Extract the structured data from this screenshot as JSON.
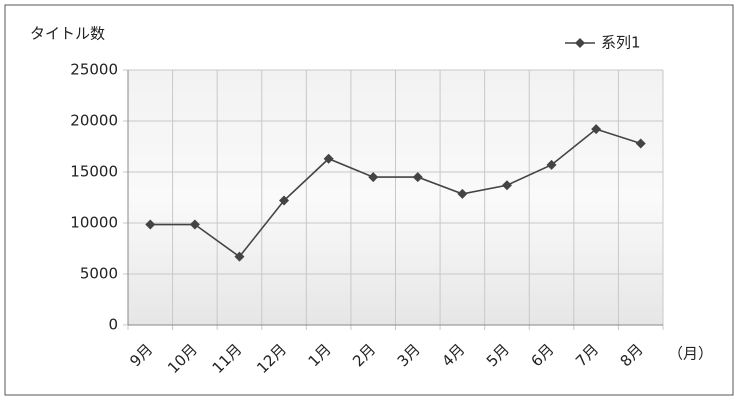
{
  "chart_data": {
    "type": "line",
    "y_label": "タイトル数",
    "x_label": "（月）",
    "categories": [
      "9月",
      "10月",
      "11月",
      "12月",
      "1月",
      "2月",
      "3月",
      "4月",
      "5月",
      "6月",
      "7月",
      "8月"
    ],
    "series": [
      {
        "name": "系列1",
        "color": "#444444",
        "values": [
          9850,
          9850,
          6700,
          12200,
          16300,
          14500,
          14500,
          12850,
          13700,
          15700,
          19200,
          17800
        ]
      }
    ],
    "ylim": [
      0,
      25000
    ],
    "yticks": [
      0,
      5000,
      10000,
      15000,
      20000,
      25000
    ],
    "grid": true,
    "legend": "top-right"
  }
}
